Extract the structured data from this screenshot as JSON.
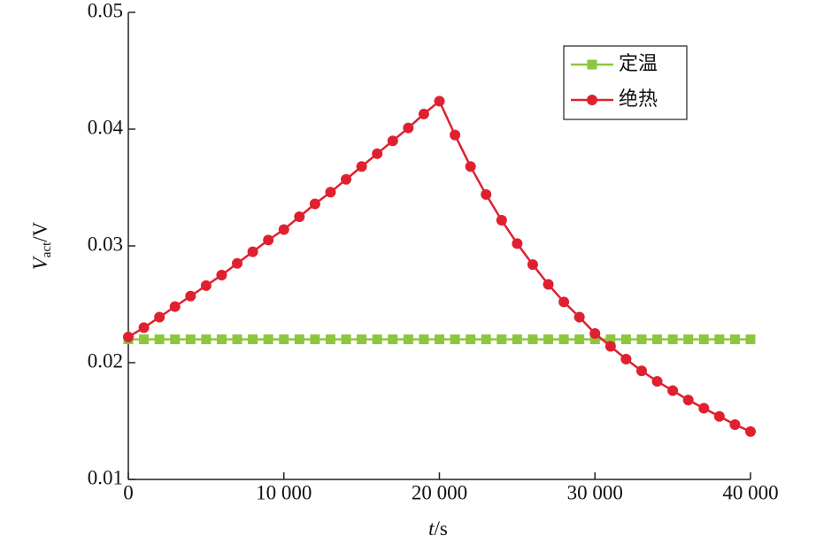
{
  "chart_data": {
    "type": "line",
    "x": [
      0,
      1000,
      2000,
      3000,
      4000,
      5000,
      6000,
      7000,
      8000,
      9000,
      10000,
      11000,
      12000,
      13000,
      14000,
      15000,
      16000,
      17000,
      18000,
      19000,
      20000,
      21000,
      22000,
      23000,
      24000,
      25000,
      26000,
      27000,
      28000,
      29000,
      30000,
      31000,
      32000,
      33000,
      34000,
      35000,
      36000,
      37000,
      38000,
      39000,
      40000
    ],
    "series": [
      {
        "name": "定温",
        "color": "#8cc63f",
        "marker": "square",
        "values": [
          0.022,
          0.022,
          0.022,
          0.022,
          0.022,
          0.022,
          0.022,
          0.022,
          0.022,
          0.022,
          0.022,
          0.022,
          0.022,
          0.022,
          0.022,
          0.022,
          0.022,
          0.022,
          0.022,
          0.022,
          0.022,
          0.022,
          0.022,
          0.022,
          0.022,
          0.022,
          0.022,
          0.022,
          0.022,
          0.022,
          0.022,
          0.022,
          0.022,
          0.022,
          0.022,
          0.022,
          0.022,
          0.022,
          0.022,
          0.022,
          0.022
        ]
      },
      {
        "name": "绝热",
        "color": "#e0202f",
        "marker": "circle",
        "values": [
          0.0222,
          0.023,
          0.0239,
          0.0248,
          0.0257,
          0.0266,
          0.0275,
          0.0285,
          0.0295,
          0.0305,
          0.0314,
          0.0325,
          0.0336,
          0.0346,
          0.0357,
          0.0368,
          0.0379,
          0.039,
          0.0401,
          0.0413,
          0.0424,
          0.0395,
          0.0368,
          0.0344,
          0.0322,
          0.0302,
          0.0284,
          0.0267,
          0.0252,
          0.0239,
          0.0225,
          0.0214,
          0.0203,
          0.0193,
          0.0184,
          0.0176,
          0.0168,
          0.0161,
          0.0154,
          0.0147,
          0.0141
        ]
      }
    ],
    "xlim": [
      0,
      40000
    ],
    "xticks": [
      0,
      {
        "value": 10000,
        "label": "10 000"
      },
      {
        "value": 20000,
        "label": "20 000"
      },
      {
        "value": 30000,
        "label": "30 000"
      },
      {
        "value": 40000,
        "label": "40 000"
      }
    ],
    "ylim": [
      0.01,
      0.05
    ],
    "yticks": [
      0.01,
      0.02,
      0.03,
      0.04,
      0.05
    ],
    "xlabel": {
      "symbol": "t",
      "unit": "/s"
    },
    "ylabel": {
      "symbol": "V",
      "subscript": "act",
      "unit": "/V"
    },
    "legend": "top-right",
    "grid": false
  }
}
